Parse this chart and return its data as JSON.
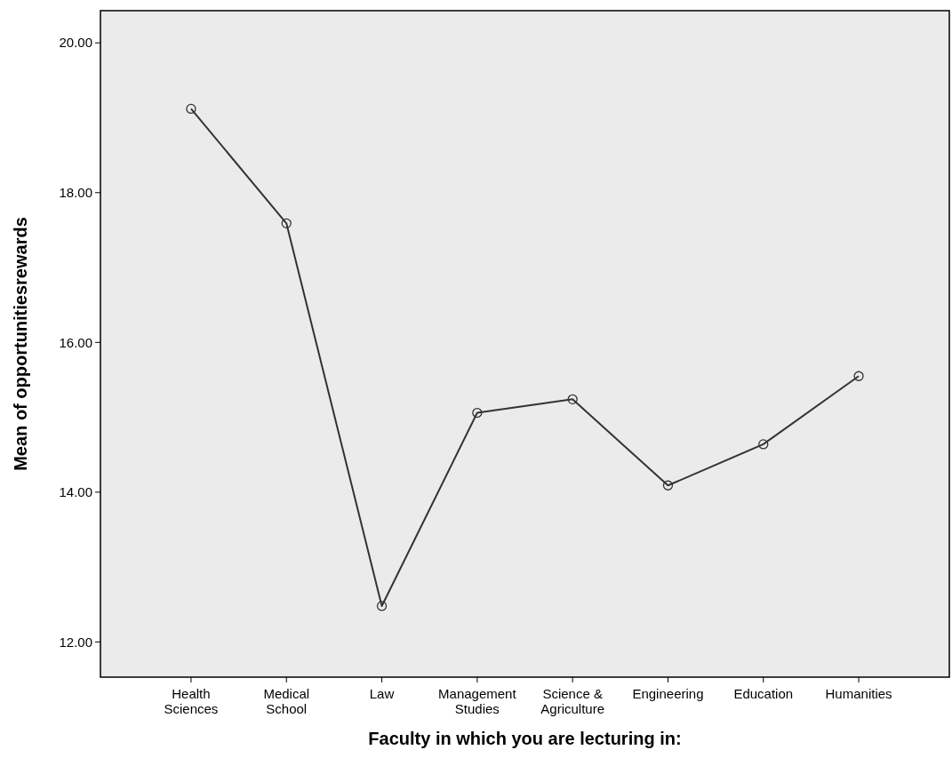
{
  "chart_data": {
    "type": "line",
    "xlabel": "Faculty in which you are lecturing in:",
    "ylabel": "Mean of opportunitiesrewards",
    "categories": [
      "Health Sciences",
      "Medical School",
      "Law",
      "Management Studies",
      "Science & Agriculture",
      "Engineering",
      "Education",
      "Humanities"
    ],
    "series": [
      {
        "color": "#333333",
        "values": [
          19.12,
          17.59,
          12.48,
          15.06,
          15.24,
          14.09,
          14.64,
          15.55
        ]
      }
    ],
    "ylim": [
      11.53,
      20.43
    ],
    "yticks": [
      {
        "value": 12,
        "label": "12.00"
      },
      {
        "value": 14,
        "label": "14.00"
      },
      {
        "value": 16,
        "label": "16.00"
      },
      {
        "value": 18,
        "label": "18.00"
      },
      {
        "value": 20,
        "label": "20.00"
      }
    ],
    "grid": false,
    "marker": "circle",
    "line_style": "solid"
  }
}
